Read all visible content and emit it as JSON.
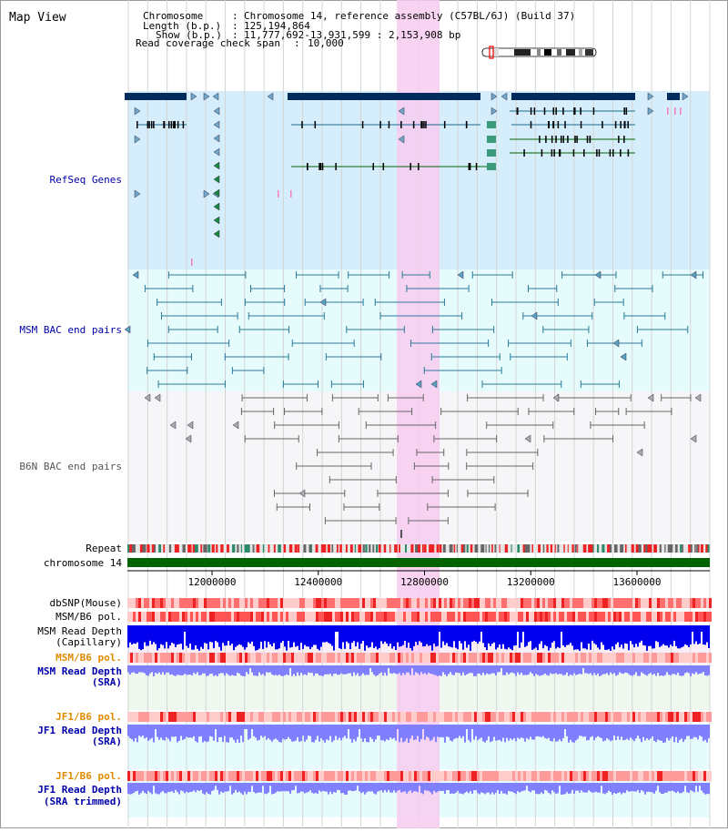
{
  "title": "Map View",
  "header": {
    "chromosome_label": "Chromosome",
    "chromosome_value": "Chromosome 14, reference assembly (C57BL/6J) (Build 37)",
    "length_label": "Length (b.p.)",
    "length_value": "125,194,864",
    "show_label": "Show (b.p.)",
    "show_value": "11,777,692-13,931,599 : 2,153,908 bp",
    "coverage_label": "Read coverage check span",
    "coverage_value": "10,000"
  },
  "tracks": {
    "refseq": "RefSeq Genes",
    "msm_bac": "MSM BAC end pairs",
    "b6n_bac": "B6N BAC end pairs",
    "repeat": "Repeat",
    "chromosome": "chromosome 14",
    "dbsnp": "dbSNP(Mouse)",
    "msm_b6_pol_1": "MSM/B6 pol.",
    "msm_read_cap_1": "MSM Read Depth",
    "msm_read_cap_2": "(Capillary)",
    "msm_b6_pol_2": "MSM/B6 pol.",
    "msm_read_sra_1": "MSM Read Depth",
    "msm_read_sra_2": "(SRA)",
    "jf1_b6_pol_1": "JF1/B6 pol.",
    "jf1_read_sra_1": "JF1 Read Depth",
    "jf1_read_sra_2": "(SRA)",
    "jf1_b6_pol_2": "JF1/B6 pol.",
    "jf1_read_trim_1": "JF1 Read Depth",
    "jf1_read_trim_2": "(SRA trimmed)"
  },
  "axis": {
    "ticks": [
      {
        "bp": 12000000,
        "label": "12000000"
      },
      {
        "bp": 12400000,
        "label": "12400000"
      },
      {
        "bp": 12800000,
        "label": "12800000"
      },
      {
        "bp": 13200000,
        "label": "13200000"
      },
      {
        "bp": 13600000,
        "label": "13600000"
      }
    ]
  },
  "colors": {
    "refseq_bg": "#d6eefb",
    "msm_bg": "#e6fbfb",
    "b6n_bg": "#f6f6f8",
    "highlight": "#f7ccf0",
    "gene_dark": "#002b5c",
    "gene_line": "#1a6a8a",
    "gene_green": "#006600",
    "msm_pair": "#2a7a9a",
    "b6n_pair": "#666666",
    "chromosome": "#006400",
    "snp": "#ff4444",
    "depth_blue": "#0000ee",
    "depth_light": "#8080ff",
    "label_blue": "#0000aa",
    "label_orange": "#e08a00"
  }
}
